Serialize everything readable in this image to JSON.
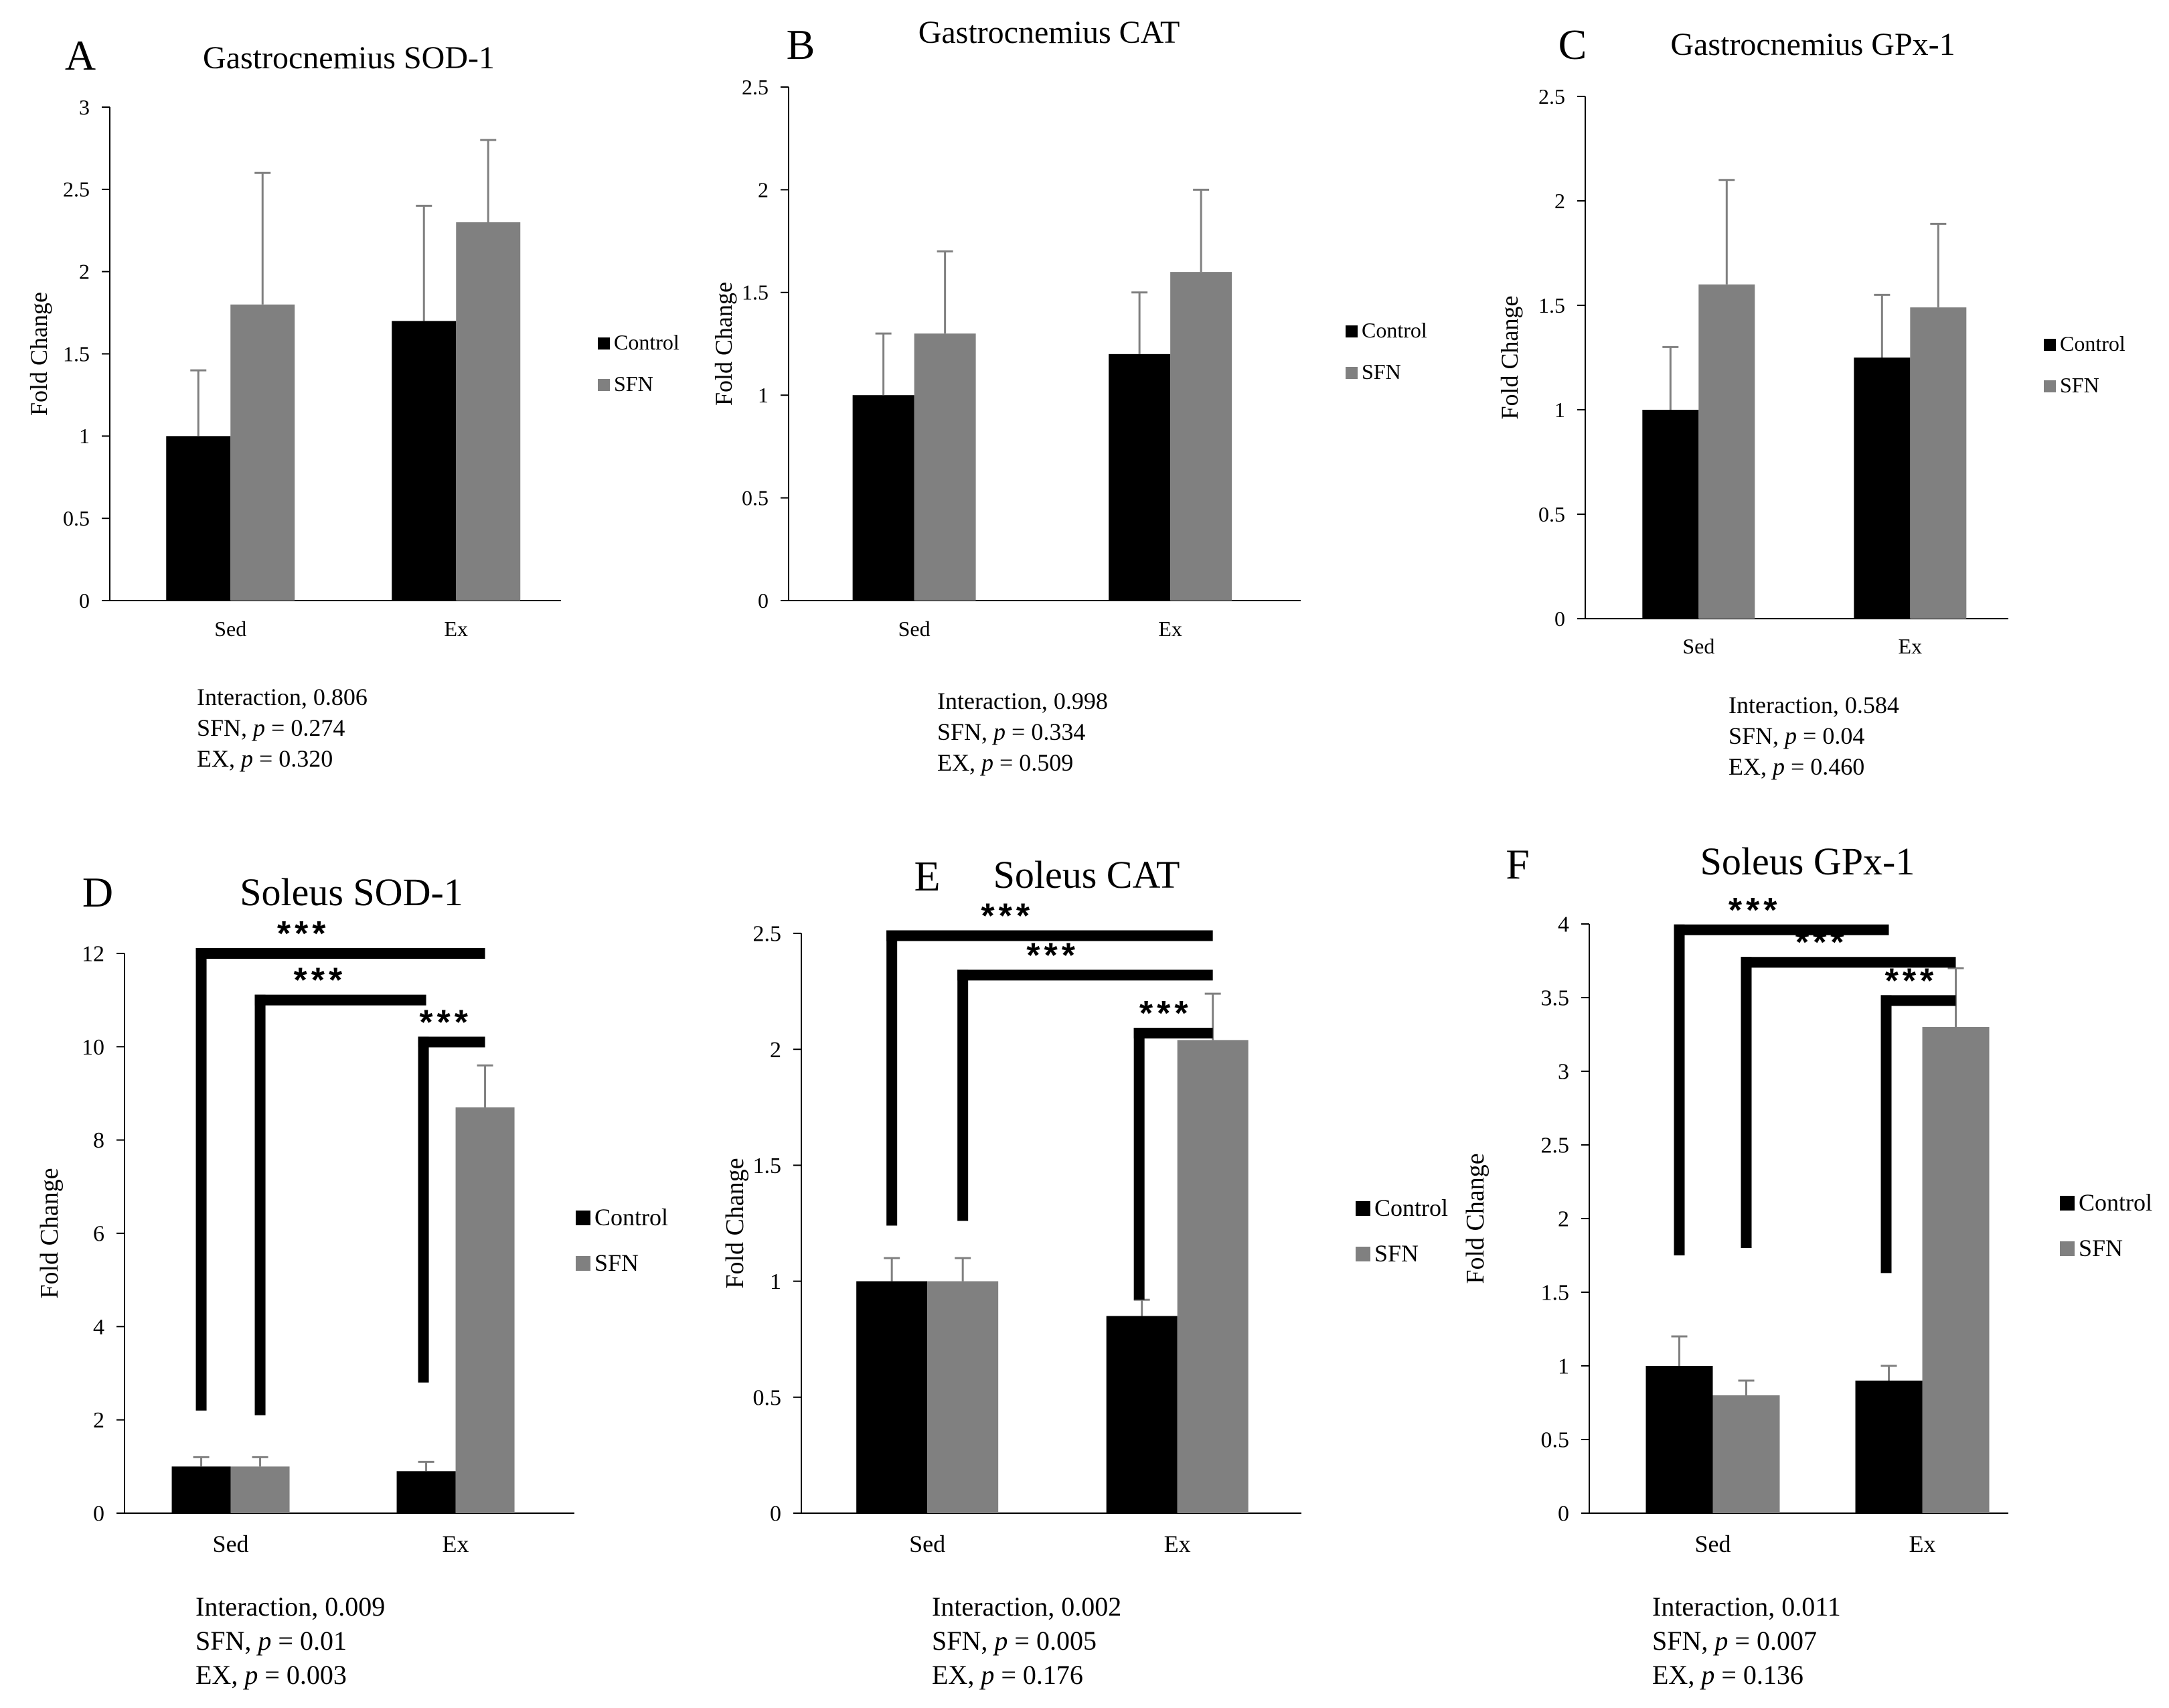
{
  "colors": {
    "control": "#000000",
    "sfn": "#808080",
    "axis": "#000000",
    "bracket": "#000000"
  },
  "chart_data": [
    {
      "type": "bar",
      "letter": "A",
      "title": "Gastrocnemius SOD-1",
      "ylabel": "Fold Change",
      "xlabel": "",
      "categories": [
        "Sed",
        "Ex"
      ],
      "series": [
        {
          "name": "Control",
          "values": [
            1.0,
            1.7
          ],
          "errors": [
            0.4,
            0.7
          ]
        },
        {
          "name": "SFN",
          "values": [
            1.8,
            2.3
          ],
          "errors": [
            0.8,
            0.5
          ]
        }
      ],
      "ylim": [
        0,
        3
      ],
      "yticks": [
        0,
        0.5,
        1,
        1.5,
        2,
        2.5,
        3
      ],
      "ytick_labels": [
        "0",
        "0.5",
        "1",
        "1.5",
        "2",
        "2.5",
        "3"
      ],
      "grid": false,
      "legend_position": "right",
      "brackets": [],
      "stats": [
        {
          "label": "Interaction",
          "sep": ", ",
          "pvar": "",
          "value": "0.806"
        },
        {
          "label": "SFN",
          "sep": ", ",
          "pvar": "p",
          "value": " = 0.274"
        },
        {
          "label": "EX",
          "sep": ", ",
          "pvar": "p",
          "value": " = 0.320"
        }
      ]
    },
    {
      "type": "bar",
      "letter": "B",
      "title": "Gastrocnemius CAT",
      "ylabel": "Fold Change",
      "xlabel": "",
      "categories": [
        "Sed",
        "Ex"
      ],
      "series": [
        {
          "name": "Control",
          "values": [
            1.0,
            1.2
          ],
          "errors": [
            0.3,
            0.3
          ]
        },
        {
          "name": "SFN",
          "values": [
            1.3,
            1.6
          ],
          "errors": [
            0.4,
            0.4
          ]
        }
      ],
      "ylim": [
        0,
        2.5
      ],
      "yticks": [
        0,
        0.5,
        1,
        1.5,
        2,
        2.5
      ],
      "ytick_labels": [
        "0",
        "0.5",
        "1",
        "1.5",
        "2",
        "2.5"
      ],
      "grid": false,
      "legend_position": "right",
      "brackets": [],
      "stats": [
        {
          "label": "Interaction",
          "sep": ", ",
          "pvar": "",
          "value": "0.998"
        },
        {
          "label": "SFN",
          "sep": ", ",
          "pvar": "p",
          "value": " = 0.334"
        },
        {
          "label": "EX",
          "sep": ", ",
          "pvar": "p",
          "value": " = 0.509"
        }
      ]
    },
    {
      "type": "bar",
      "letter": "C",
      "title": "Gastrocnemius GPx-1",
      "ylabel": "Fold Change",
      "xlabel": "",
      "categories": [
        "Sed",
        "Ex"
      ],
      "series": [
        {
          "name": "Control",
          "values": [
            1.0,
            1.25
          ],
          "errors": [
            0.3,
            0.3
          ]
        },
        {
          "name": "SFN",
          "values": [
            1.6,
            1.49
          ],
          "errors": [
            0.5,
            0.4
          ]
        }
      ],
      "ylim": [
        0,
        2.5
      ],
      "yticks": [
        0,
        0.5,
        1,
        1.5,
        2,
        2.5
      ],
      "ytick_labels": [
        "0",
        "0.5",
        "1",
        "1.5",
        "2",
        "2.5"
      ],
      "grid": false,
      "legend_position": "right",
      "brackets": [],
      "stats": [
        {
          "label": "Interaction",
          "sep": ", ",
          "pvar": "",
          "value": "0.584"
        },
        {
          "label": "SFN",
          "sep": ", ",
          "pvar": "p",
          "value": " = 0.04"
        },
        {
          "label": "EX",
          "sep": ", ",
          "pvar": "p",
          "value": " = 0.460"
        }
      ]
    },
    {
      "type": "bar",
      "letter": "D",
      "title": "Soleus SOD-1",
      "ylabel": "Fold Change",
      "xlabel": "",
      "categories": [
        "Sed",
        "Ex"
      ],
      "series": [
        {
          "name": "Control",
          "values": [
            1.0,
            0.9
          ],
          "errors": [
            0.2,
            0.2
          ]
        },
        {
          "name": "SFN",
          "values": [
            1.0,
            8.7
          ],
          "errors": [
            0.2,
            0.9
          ]
        }
      ],
      "ylim": [
        0,
        12
      ],
      "yticks": [
        0,
        2,
        4,
        6,
        8,
        10,
        12
      ],
      "ytick_labels": [
        "0",
        "2",
        "4",
        "6",
        "8",
        "10",
        "12"
      ],
      "grid": false,
      "legend_position": "right",
      "brackets": [
        {
          "from": [
            0,
            0
          ],
          "to": [
            1,
            1
          ],
          "y": 12.0,
          "y_start": 2.2,
          "label": "***"
        },
        {
          "from": [
            0,
            1
          ],
          "to": [
            1,
            0
          ],
          "y": 11.0,
          "y_start": 2.1,
          "label": "***"
        },
        {
          "from": [
            1,
            0
          ],
          "to": [
            1,
            1
          ],
          "y": 10.1,
          "y_start": 2.8,
          "label": "***"
        }
      ],
      "stats": [
        {
          "label": "Interaction",
          "sep": ", ",
          "pvar": "",
          "value": "0.009"
        },
        {
          "label": "SFN",
          "sep": ", ",
          "pvar": "p",
          "value": " = 0.01"
        },
        {
          "label": "EX",
          "sep": ", ",
          "pvar": "p",
          "value": " = 0.003"
        }
      ]
    },
    {
      "type": "bar",
      "letter": "E",
      "title": "Soleus CAT",
      "ylabel": "Fold Change",
      "xlabel": "",
      "categories": [
        "Sed",
        "Ex"
      ],
      "series": [
        {
          "name": "Control",
          "values": [
            1.0,
            0.85
          ],
          "errors": [
            0.1,
            0.07
          ]
        },
        {
          "name": "SFN",
          "values": [
            1.0,
            2.04
          ],
          "errors": [
            0.1,
            0.2
          ]
        }
      ],
      "ylim": [
        0,
        2.5
      ],
      "yticks": [
        0,
        0.5,
        1,
        1.5,
        2,
        2.5
      ],
      "ytick_labels": [
        "0",
        "0.5",
        "1",
        "1.5",
        "2",
        "2.5"
      ],
      "grid": false,
      "legend_position": "right",
      "brackets": [
        {
          "from": [
            0,
            0
          ],
          "to": [
            1,
            1
          ],
          "y": 2.49,
          "y_start": 1.24,
          "label": "***"
        },
        {
          "from": [
            0,
            1
          ],
          "to": [
            1,
            1
          ],
          "y": 2.32,
          "y_start": 1.26,
          "label": "***"
        },
        {
          "from": [
            1,
            0
          ],
          "to": [
            1,
            1
          ],
          "y": 2.07,
          "y_start": 0.92,
          "label": "***"
        }
      ],
      "stats": [
        {
          "label": "Interaction",
          "sep": ", ",
          "pvar": "",
          "value": "0.002"
        },
        {
          "label": "SFN",
          "sep": ", ",
          "pvar": "p",
          "value": " = 0.005"
        },
        {
          "label": "EX",
          "sep": ", ",
          "pvar": "p",
          "value": " = 0.176"
        }
      ]
    },
    {
      "type": "bar",
      "letter": "F",
      "title": "Soleus GPx-1",
      "ylabel": "Fold Change",
      "xlabel": "",
      "categories": [
        "Sed",
        "Ex"
      ],
      "series": [
        {
          "name": "Control",
          "values": [
            1.0,
            0.9
          ],
          "errors": [
            0.2,
            0.1
          ]
        },
        {
          "name": "SFN",
          "values": [
            0.8,
            3.3
          ],
          "errors": [
            0.1,
            0.4
          ]
        }
      ],
      "ylim": [
        0,
        4
      ],
      "yticks": [
        0,
        0.5,
        1,
        1.5,
        2,
        2.5,
        3,
        3.5,
        4
      ],
      "ytick_labels": [
        "0",
        "0.5",
        "1",
        "1.5",
        "2",
        "2.5",
        "3",
        "3.5",
        "4"
      ],
      "grid": false,
      "legend_position": "right",
      "brackets": [
        {
          "from": [
            0,
            0
          ],
          "to": [
            1,
            0
          ],
          "y": 3.96,
          "y_start": 1.75,
          "label": "***"
        },
        {
          "from": [
            0,
            1
          ],
          "to": [
            1,
            1
          ],
          "y": 3.74,
          "y_start": 1.8,
          "label": "***"
        },
        {
          "from": [
            1,
            0
          ],
          "to": [
            1,
            1
          ],
          "y": 3.48,
          "y_start": 1.63,
          "label": "***"
        }
      ],
      "stats": [
        {
          "label": "Interaction",
          "sep": ", ",
          "pvar": "",
          "value": "0.011"
        },
        {
          "label": "SFN",
          "sep": ", ",
          "pvar": "p",
          "value": " = 0.007"
        },
        {
          "label": "EX",
          "sep": ", ",
          "pvar": "p",
          "value": " = 0.136"
        }
      ]
    }
  ]
}
